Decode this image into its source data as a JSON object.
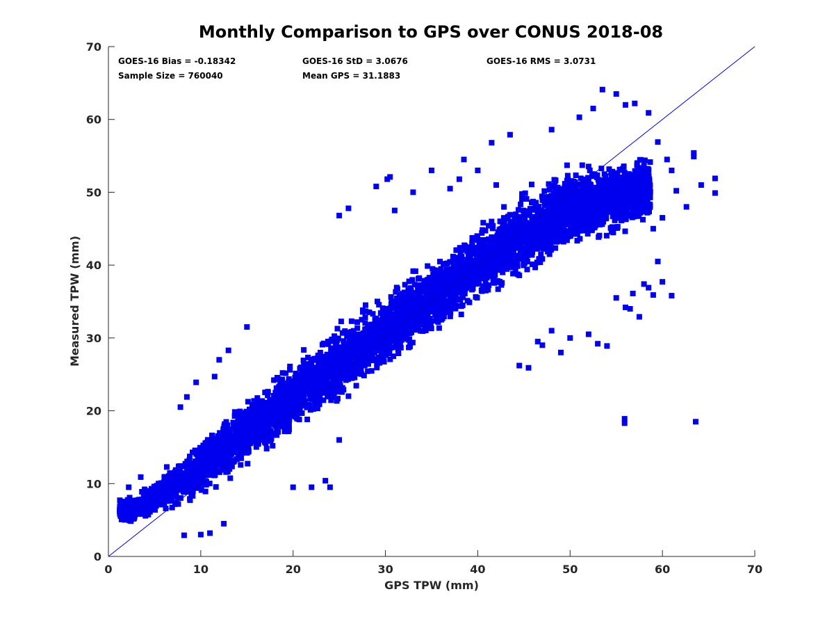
{
  "chart_data": {
    "type": "scatter",
    "title": "Monthly Comparison to GPS over CONUS 2018-08",
    "xlabel": "GPS TPW (mm)",
    "ylabel": "Measured TPW (mm)",
    "xlim": [
      0,
      70
    ],
    "ylim": [
      0,
      70
    ],
    "xticks": [
      "0",
      "10",
      "20",
      "30",
      "40",
      "50",
      "60",
      "70"
    ],
    "yticks": [
      "0",
      "10",
      "20",
      "30",
      "40",
      "50",
      "60",
      "70"
    ],
    "grid": false,
    "series_color": "#0000ee",
    "reference_line": {
      "from": [
        0,
        0
      ],
      "to": [
        70,
        70
      ],
      "color": "#0000cc"
    },
    "stats": {
      "bias": "GOES-16 Bias = -0.18342",
      "std": "GOES-16 StD = 3.0676",
      "rms": "GOES-16 RMS = 3.0731",
      "sample_size": "Sample Size = 760040",
      "mean_gps": "Mean GPS = 31.1883"
    },
    "density_trend": [
      {
        "x": 3,
        "y_center": 6.5,
        "y_spread": 2.5
      },
      {
        "x": 10,
        "y_center": 12.0,
        "y_spread": 5.5
      },
      {
        "x": 20,
        "y_center": 22.0,
        "y_spread": 6.5
      },
      {
        "x": 30,
        "y_center": 31.0,
        "y_spread": 7.0
      },
      {
        "x": 40,
        "y_center": 40.0,
        "y_spread": 7.0
      },
      {
        "x": 50,
        "y_center": 48.0,
        "y_spread": 8.0
      },
      {
        "x": 57,
        "y_center": 50.0,
        "y_spread": 7.0
      }
    ],
    "outliers": [
      [
        63.6,
        18.5
      ],
      [
        55.9,
        18.9
      ],
      [
        55.9,
        18.3
      ],
      [
        65.7,
        51.9
      ],
      [
        65.7,
        49.9
      ],
      [
        64.2,
        51.0
      ],
      [
        63.4,
        54.9
      ],
      [
        63.4,
        55.4
      ],
      [
        62.6,
        48.0
      ],
      [
        61.5,
        50.2
      ],
      [
        61.0,
        35.8
      ],
      [
        58.0,
        37.4
      ],
      [
        58.5,
        36.9
      ],
      [
        59.0,
        35.9
      ],
      [
        60.0,
        37.7
      ],
      [
        59.5,
        40.5
      ],
      [
        57.5,
        32.9
      ],
      [
        56.5,
        34.0
      ],
      [
        55.0,
        35.5
      ],
      [
        54.0,
        28.9
      ],
      [
        53.0,
        29.2
      ],
      [
        52.0,
        30.5
      ],
      [
        50.0,
        30.0
      ],
      [
        49.0,
        28.0
      ],
      [
        48.0,
        31.0
      ],
      [
        47.0,
        29.0
      ],
      [
        46.5,
        29.5
      ],
      [
        44.5,
        26.2
      ],
      [
        45.5,
        25.9
      ],
      [
        53.5,
        64.1
      ],
      [
        55.0,
        63.5
      ],
      [
        57.0,
        62.2
      ],
      [
        56.0,
        62.0
      ],
      [
        52.5,
        61.5
      ],
      [
        51.0,
        60.3
      ],
      [
        48.0,
        58.6
      ],
      [
        43.5,
        57.9
      ],
      [
        41.5,
        56.8
      ],
      [
        38.0,
        51.8
      ],
      [
        37.0,
        50.5
      ],
      [
        33.0,
        50.0
      ],
      [
        30.5,
        52.1
      ],
      [
        30.2,
        51.8
      ],
      [
        29.0,
        50.8
      ],
      [
        26.0,
        47.8
      ],
      [
        25.0,
        46.8
      ],
      [
        31.0,
        47.5
      ],
      [
        26.0,
        22.0
      ],
      [
        25.0,
        16.0
      ],
      [
        20.0,
        9.5
      ],
      [
        22.0,
        9.5
      ],
      [
        24.0,
        9.5
      ],
      [
        23.5,
        10.4
      ],
      [
        15.0,
        31.5
      ],
      [
        13.0,
        28.3
      ],
      [
        12.0,
        27.0
      ],
      [
        11.5,
        24.7
      ],
      [
        8.5,
        21.9
      ],
      [
        9.5,
        23.9
      ],
      [
        7.8,
        20.5
      ],
      [
        8.2,
        2.9
      ],
      [
        10.0,
        3.0
      ],
      [
        11.0,
        3.2
      ],
      [
        12.5,
        4.5
      ],
      [
        1.3,
        6.4
      ],
      [
        1.8,
        5.8
      ],
      [
        2.2,
        9.5
      ],
      [
        3.5,
        10.9
      ],
      [
        58.5,
        60.9
      ],
      [
        59.5,
        56.9
      ],
      [
        60.5,
        54.5
      ],
      [
        61.0,
        53.0
      ],
      [
        60.0,
        46.5
      ],
      [
        59.0,
        45.0
      ],
      [
        56.8,
        36.1
      ],
      [
        56.0,
        34.2
      ],
      [
        42.0,
        51.0
      ],
      [
        40.0,
        53.0
      ],
      [
        38.5,
        54.5
      ],
      [
        35.0,
        53.0
      ]
    ]
  }
}
